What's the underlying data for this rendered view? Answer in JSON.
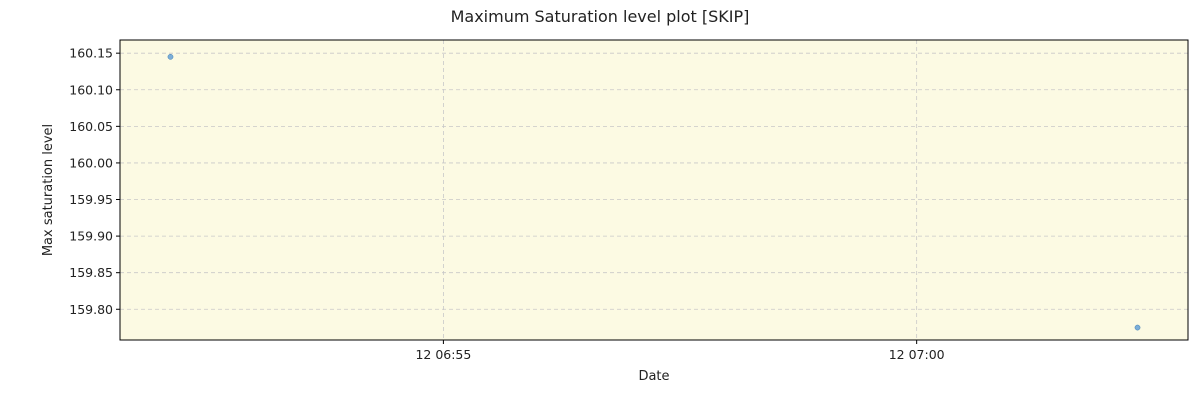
{
  "chart_data": {
    "type": "scatter",
    "title": "Maximum Saturation level plot [SKIP]",
    "xlabel": "Date",
    "ylabel": "Max saturation level",
    "x_axis_type": "datetime",
    "xlim": [
      "06:51:35",
      "07:02:52"
    ],
    "ylim": [
      159.758,
      160.168
    ],
    "grid": true,
    "background_color": "#fcfae3",
    "point_color": "#5b9bd5",
    "x_ticks": [
      {
        "value": "06:55:00",
        "label": "12 06:55"
      },
      {
        "value": "07:00:00",
        "label": "12 07:00"
      }
    ],
    "y_ticks": [
      {
        "value": 159.8,
        "label": "159.80"
      },
      {
        "value": 159.85,
        "label": "159.85"
      },
      {
        "value": 159.9,
        "label": "159.90"
      },
      {
        "value": 159.95,
        "label": "159.95"
      },
      {
        "value": 160.0,
        "label": "160.00"
      },
      {
        "value": 160.05,
        "label": "160.05"
      },
      {
        "value": 160.1,
        "label": "160.10"
      },
      {
        "value": 160.15,
        "label": "160.15"
      }
    ],
    "points": [
      {
        "x": "06:52:07",
        "y": 160.145
      },
      {
        "x": "07:02:20",
        "y": 159.775
      }
    ]
  }
}
